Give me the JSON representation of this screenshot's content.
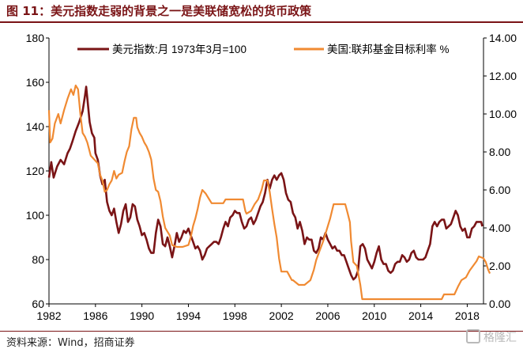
{
  "header": {
    "title": "图 11：美元指数走弱的背景之一是美联储宽松的货币政策"
  },
  "footer": {
    "source": "资料来源：Wind，招商证券",
    "watermark": "格隆汇"
  },
  "colors": {
    "dxy": "#7a1416",
    "fed": "#f08a32",
    "axis": "#000000",
    "title": "#7a1416"
  },
  "chart_data": {
    "type": "line",
    "title": "",
    "xlabel": "",
    "ylabel": "",
    "y2label": "",
    "xlim": [
      1982,
      2019.4
    ],
    "ylim": [
      60,
      180
    ],
    "y2lim": [
      0,
      14
    ],
    "x_ticks": [
      "1982",
      "1986",
      "1990",
      "1994",
      "1998",
      "2002",
      "2006",
      "2010",
      "2014",
      "2018"
    ],
    "y_ticks": [
      "60",
      "80",
      "100",
      "120",
      "140",
      "160",
      "180"
    ],
    "y2_ticks": [
      "0.00",
      "2.00",
      "4.00",
      "6.00",
      "8.00",
      "10.00",
      "12.00",
      "14.00"
    ],
    "legend_position": "top",
    "grid": false,
    "series": [
      {
        "name": "美元指数:月 1973年3月=100",
        "axis": "left",
        "points": [
          [
            1982.0,
            117
          ],
          [
            1982.2,
            124
          ],
          [
            1982.4,
            117
          ],
          [
            1982.7,
            122
          ],
          [
            1983.0,
            125
          ],
          [
            1983.3,
            123
          ],
          [
            1983.6,
            128
          ],
          [
            1983.8,
            130
          ],
          [
            1984.0,
            133
          ],
          [
            1984.3,
            138
          ],
          [
            1984.6,
            142
          ],
          [
            1984.9,
            147
          ],
          [
            1985.1,
            154
          ],
          [
            1985.2,
            158
          ],
          [
            1985.35,
            150
          ],
          [
            1985.5,
            142
          ],
          [
            1985.7,
            137
          ],
          [
            1985.9,
            135
          ],
          [
            1986.0,
            128
          ],
          [
            1986.2,
            125
          ],
          [
            1986.4,
            118
          ],
          [
            1986.6,
            114
          ],
          [
            1986.8,
            116
          ],
          [
            1987.0,
            106
          ],
          [
            1987.2,
            102
          ],
          [
            1987.4,
            100
          ],
          [
            1987.6,
            103
          ],
          [
            1987.8,
            97
          ],
          [
            1988.0,
            92
          ],
          [
            1988.2,
            96
          ],
          [
            1988.4,
            102
          ],
          [
            1988.6,
            105
          ],
          [
            1988.8,
            97
          ],
          [
            1989.0,
            99
          ],
          [
            1989.2,
            105
          ],
          [
            1989.4,
            104
          ],
          [
            1989.6,
            98
          ],
          [
            1989.8,
            95
          ],
          [
            1990.0,
            91
          ],
          [
            1990.2,
            92
          ],
          [
            1990.4,
            89
          ],
          [
            1990.6,
            85
          ],
          [
            1990.8,
            83
          ],
          [
            1991.0,
            83
          ],
          [
            1991.2,
            92
          ],
          [
            1991.4,
            98
          ],
          [
            1991.6,
            95
          ],
          [
            1991.8,
            87
          ],
          [
            1992.0,
            86
          ],
          [
            1992.2,
            90
          ],
          [
            1992.4,
            86
          ],
          [
            1992.6,
            81
          ],
          [
            1992.8,
            86
          ],
          [
            1993.0,
            92
          ],
          [
            1993.2,
            88
          ],
          [
            1993.4,
            90
          ],
          [
            1993.6,
            93
          ],
          [
            1993.8,
            92
          ],
          [
            1994.0,
            94
          ],
          [
            1994.2,
            91
          ],
          [
            1994.4,
            88
          ],
          [
            1994.6,
            85
          ],
          [
            1994.8,
            86
          ],
          [
            1995.0,
            84
          ],
          [
            1995.2,
            80
          ],
          [
            1995.4,
            82
          ],
          [
            1995.6,
            85
          ],
          [
            1995.8,
            86
          ],
          [
            1996.0,
            87
          ],
          [
            1996.2,
            88
          ],
          [
            1996.4,
            88
          ],
          [
            1996.6,
            87
          ],
          [
            1996.8,
            90
          ],
          [
            1997.0,
            94
          ],
          [
            1997.2,
            97
          ],
          [
            1997.4,
            95
          ],
          [
            1997.6,
            99
          ],
          [
            1997.8,
            100
          ],
          [
            1998.0,
            102
          ],
          [
            1998.2,
            101
          ],
          [
            1998.4,
            101
          ],
          [
            1998.6,
            97
          ],
          [
            1998.8,
            94
          ],
          [
            1999.0,
            95
          ],
          [
            1999.2,
            98
          ],
          [
            1999.4,
            99
          ],
          [
            1999.6,
            96
          ],
          [
            1999.8,
            98
          ],
          [
            2000.0,
            101
          ],
          [
            2000.2,
            104
          ],
          [
            2000.4,
            106
          ],
          [
            2000.6,
            110
          ],
          [
            2000.8,
            116
          ],
          [
            2001.0,
            112
          ],
          [
            2001.2,
            116
          ],
          [
            2001.4,
            118
          ],
          [
            2001.6,
            116
          ],
          [
            2001.8,
            118
          ],
          [
            2002.0,
            119
          ],
          [
            2002.2,
            116
          ],
          [
            2002.4,
            110
          ],
          [
            2002.6,
            107
          ],
          [
            2002.8,
            106
          ],
          [
            2003.0,
            101
          ],
          [
            2003.2,
            99
          ],
          [
            2003.4,
            94
          ],
          [
            2003.6,
            97
          ],
          [
            2003.8,
            93
          ],
          [
            2004.0,
            87
          ],
          [
            2004.2,
            90
          ],
          [
            2004.4,
            89
          ],
          [
            2004.6,
            89
          ],
          [
            2004.8,
            84
          ],
          [
            2005.0,
            83
          ],
          [
            2005.2,
            85
          ],
          [
            2005.4,
            90
          ],
          [
            2005.6,
            89
          ],
          [
            2005.8,
            92
          ],
          [
            2006.0,
            89
          ],
          [
            2006.2,
            87
          ],
          [
            2006.4,
            85
          ],
          [
            2006.6,
            86
          ],
          [
            2006.8,
            84
          ],
          [
            2007.0,
            84
          ],
          [
            2007.2,
            82
          ],
          [
            2007.4,
            82
          ],
          [
            2007.6,
            79
          ],
          [
            2007.8,
            76
          ],
          [
            2008.0,
            73
          ],
          [
            2008.2,
            71
          ],
          [
            2008.4,
            72
          ],
          [
            2008.6,
            75
          ],
          [
            2008.8,
            86
          ],
          [
            2009.0,
            87
          ],
          [
            2009.2,
            85
          ],
          [
            2009.4,
            80
          ],
          [
            2009.6,
            78
          ],
          [
            2009.8,
            76
          ],
          [
            2010.0,
            79
          ],
          [
            2010.2,
            83
          ],
          [
            2010.4,
            86
          ],
          [
            2010.6,
            80
          ],
          [
            2010.8,
            78
          ],
          [
            2011.0,
            78
          ],
          [
            2011.2,
            75
          ],
          [
            2011.4,
            74
          ],
          [
            2011.6,
            75
          ],
          [
            2011.8,
            78
          ],
          [
            2012.0,
            79
          ],
          [
            2012.2,
            79
          ],
          [
            2012.4,
            82
          ],
          [
            2012.6,
            81
          ],
          [
            2012.8,
            79
          ],
          [
            2013.0,
            80
          ],
          [
            2013.2,
            83
          ],
          [
            2013.4,
            84
          ],
          [
            2013.6,
            81
          ],
          [
            2013.8,
            80
          ],
          [
            2014.0,
            80
          ],
          [
            2014.2,
            80
          ],
          [
            2014.4,
            81
          ],
          [
            2014.6,
            84
          ],
          [
            2014.8,
            87
          ],
          [
            2015.0,
            95
          ],
          [
            2015.2,
            97
          ],
          [
            2015.4,
            95
          ],
          [
            2015.6,
            97
          ],
          [
            2015.8,
            98
          ],
          [
            2016.0,
            98
          ],
          [
            2016.2,
            94
          ],
          [
            2016.4,
            95
          ],
          [
            2016.6,
            96
          ],
          [
            2016.8,
            99
          ],
          [
            2017.0,
            102
          ],
          [
            2017.2,
            100
          ],
          [
            2017.4,
            95
          ],
          [
            2017.6,
            93
          ],
          [
            2017.8,
            94
          ],
          [
            2018.0,
            90
          ],
          [
            2018.2,
            90
          ],
          [
            2018.4,
            94
          ],
          [
            2018.6,
            95
          ],
          [
            2018.8,
            97
          ],
          [
            2019.0,
            97
          ],
          [
            2019.2,
            97
          ],
          [
            2019.3,
            95
          ]
        ]
      },
      {
        "name": "美国:联邦基金目标利率 %",
        "axis": "right",
        "points": [
          [
            1982.0,
            10.2
          ],
          [
            1982.1,
            8.5
          ],
          [
            1982.3,
            8.7
          ],
          [
            1982.5,
            9.5
          ],
          [
            1982.8,
            10.0
          ],
          [
            1983.0,
            9.5
          ],
          [
            1983.3,
            10.2
          ],
          [
            1983.6,
            10.8
          ],
          [
            1983.9,
            11.3
          ],
          [
            1984.1,
            11.0
          ],
          [
            1984.3,
            11.5
          ],
          [
            1984.5,
            11.3
          ],
          [
            1984.7,
            10.0
          ],
          [
            1984.9,
            9.0
          ],
          [
            1985.1,
            8.8
          ],
          [
            1985.3,
            8.5
          ],
          [
            1985.6,
            7.8
          ],
          [
            1985.9,
            7.6
          ],
          [
            1986.2,
            7.4
          ],
          [
            1986.4,
            6.8
          ],
          [
            1986.6,
            6.5
          ],
          [
            1986.8,
            5.9
          ],
          [
            1987.0,
            6.0
          ],
          [
            1987.2,
            6.3
          ],
          [
            1987.4,
            6.5
          ],
          [
            1987.6,
            7.0
          ],
          [
            1987.8,
            6.6
          ],
          [
            1988.0,
            6.8
          ],
          [
            1988.3,
            6.9
          ],
          [
            1988.5,
            7.5
          ],
          [
            1988.7,
            8.0
          ],
          [
            1988.9,
            8.3
          ],
          [
            1989.1,
            9.2
          ],
          [
            1989.3,
            9.8
          ],
          [
            1989.5,
            9.8
          ],
          [
            1989.6,
            9.3
          ],
          [
            1989.8,
            9.0
          ],
          [
            1990.0,
            8.8
          ],
          [
            1990.2,
            8.5
          ],
          [
            1990.4,
            8.3
          ],
          [
            1990.6,
            8.0
          ],
          [
            1990.8,
            7.6
          ],
          [
            1991.0,
            6.6
          ],
          [
            1991.2,
            6.0
          ],
          [
            1991.4,
            5.9
          ],
          [
            1991.6,
            5.4
          ],
          [
            1991.8,
            4.6
          ],
          [
            1992.0,
            4.0
          ],
          [
            1992.2,
            3.8
          ],
          [
            1992.4,
            3.6
          ],
          [
            1992.6,
            3.1
          ],
          [
            1993.0,
            3.0
          ],
          [
            1993.5,
            3.0
          ],
          [
            1994.0,
            3.1
          ],
          [
            1994.2,
            3.5
          ],
          [
            1994.4,
            4.1
          ],
          [
            1994.6,
            4.5
          ],
          [
            1994.8,
            5.0
          ],
          [
            1995.0,
            5.6
          ],
          [
            1995.2,
            6.0
          ],
          [
            1995.5,
            5.8
          ],
          [
            1995.8,
            5.5
          ],
          [
            1996.0,
            5.3
          ],
          [
            1996.5,
            5.3
          ],
          [
            1997.0,
            5.3
          ],
          [
            1997.2,
            5.5
          ],
          [
            1997.5,
            5.5
          ],
          [
            1998.0,
            5.5
          ],
          [
            1998.7,
            5.5
          ],
          [
            1998.9,
            4.9
          ],
          [
            1999.0,
            4.75
          ],
          [
            1999.4,
            4.9
          ],
          [
            1999.7,
            5.25
          ],
          [
            2000.0,
            5.5
          ],
          [
            2000.3,
            6.0
          ],
          [
            2000.5,
            6.5
          ],
          [
            2000.8,
            6.5
          ],
          [
            2001.0,
            5.9
          ],
          [
            2001.2,
            5.0
          ],
          [
            2001.4,
            4.2
          ],
          [
            2001.6,
            3.5
          ],
          [
            2001.8,
            2.4
          ],
          [
            2002.0,
            1.7
          ],
          [
            2002.5,
            1.7
          ],
          [
            2002.9,
            1.25
          ],
          [
            2003.0,
            1.25
          ],
          [
            2003.5,
            1.0
          ],
          [
            2004.0,
            1.0
          ],
          [
            2004.5,
            1.25
          ],
          [
            2004.8,
            1.8
          ],
          [
            2005.0,
            2.3
          ],
          [
            2005.3,
            2.8
          ],
          [
            2005.6,
            3.3
          ],
          [
            2005.9,
            3.9
          ],
          [
            2006.2,
            4.5
          ],
          [
            2006.5,
            5.25
          ],
          [
            2007.0,
            5.25
          ],
          [
            2007.5,
            5.25
          ],
          [
            2007.7,
            4.8
          ],
          [
            2007.9,
            4.3
          ],
          [
            2008.0,
            3.3
          ],
          [
            2008.2,
            2.2
          ],
          [
            2008.5,
            2.0
          ],
          [
            2008.8,
            1.0
          ],
          [
            2008.96,
            0.25
          ],
          [
            2009.5,
            0.25
          ],
          [
            2010.0,
            0.25
          ],
          [
            2012.0,
            0.25
          ],
          [
            2014.0,
            0.25
          ],
          [
            2015.8,
            0.25
          ],
          [
            2016.0,
            0.5
          ],
          [
            2016.9,
            0.5
          ],
          [
            2017.2,
            0.9
          ],
          [
            2017.5,
            1.25
          ],
          [
            2017.9,
            1.4
          ],
          [
            2018.2,
            1.75
          ],
          [
            2018.5,
            2.0
          ],
          [
            2018.8,
            2.25
          ],
          [
            2019.0,
            2.5
          ],
          [
            2019.4,
            2.4
          ],
          [
            2019.6,
            2.2
          ],
          [
            2019.8,
            1.8
          ],
          [
            2019.95,
            1.6
          ]
        ]
      }
    ]
  }
}
